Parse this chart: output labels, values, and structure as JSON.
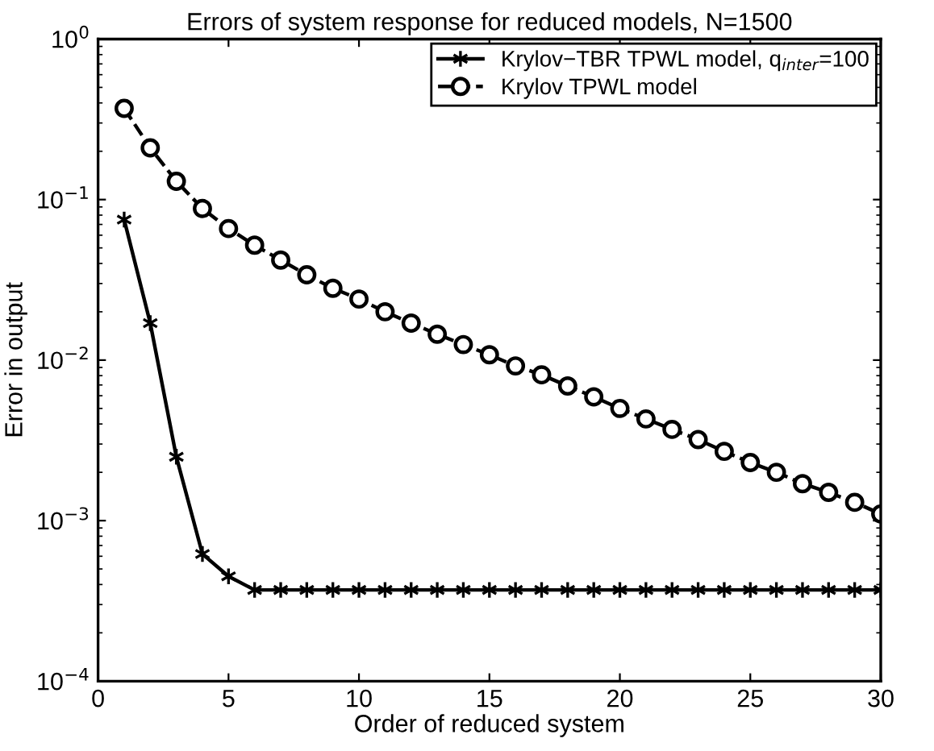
{
  "chart_data": {
    "type": "line",
    "title": "Errors of system response for reduced models, N=1500",
    "xlabel": "Order of reduced system",
    "ylabel": "Error in output",
    "x": [
      1,
      2,
      3,
      4,
      5,
      6,
      7,
      8,
      9,
      10,
      11,
      12,
      13,
      14,
      15,
      16,
      17,
      18,
      19,
      20,
      21,
      22,
      23,
      24,
      25,
      26,
      27,
      28,
      29,
      30
    ],
    "series": [
      {
        "name": "Krylov−TBR TPWL model, q$_{inter}$=100",
        "color": "#000000",
        "marker": "cross",
        "line_style": "solid",
        "values": [
          0.075,
          0.017,
          0.0025,
          0.00062,
          0.00045,
          0.00037,
          0.00037,
          0.00037,
          0.00037,
          0.00037,
          0.00037,
          0.00037,
          0.00037,
          0.00037,
          0.00037,
          0.00037,
          0.00037,
          0.00037,
          0.00037,
          0.00037,
          0.00037,
          0.00037,
          0.00037,
          0.00037,
          0.00037,
          0.00037,
          0.00037,
          0.00037,
          0.00037,
          0.00037
        ]
      },
      {
        "name": "Krylov TPWL model",
        "color": "#000000",
        "marker": "circle",
        "line_style": "dashed",
        "values": [
          0.37,
          0.21,
          0.13,
          0.088,
          0.066,
          0.052,
          0.042,
          0.034,
          0.028,
          0.024,
          0.02,
          0.017,
          0.0145,
          0.0125,
          0.0108,
          0.0092,
          0.0081,
          0.0069,
          0.0059,
          0.005,
          0.0043,
          0.0037,
          0.0032,
          0.0027,
          0.0023,
          0.002,
          0.0017,
          0.0015,
          0.0013,
          0.0011
        ]
      }
    ],
    "log": "y",
    "xlim": [
      0,
      30
    ],
    "xticks": [
      0,
      5,
      10,
      15,
      20,
      25,
      30
    ],
    "ylim": [
      0.0001,
      1
    ],
    "yticks": [
      {
        "value": 0.0001,
        "label": "10$^{−4}$"
      },
      {
        "value": 0.001,
        "label": "10$^{−3}$"
      },
      {
        "value": 0.01,
        "label": "10$^{−2}$"
      },
      {
        "value": 0.1,
        "label": "10$^{−1}$"
      },
      {
        "value": 1,
        "label": "10$^{0}$"
      }
    ],
    "grid": false,
    "legend": "top right"
  }
}
